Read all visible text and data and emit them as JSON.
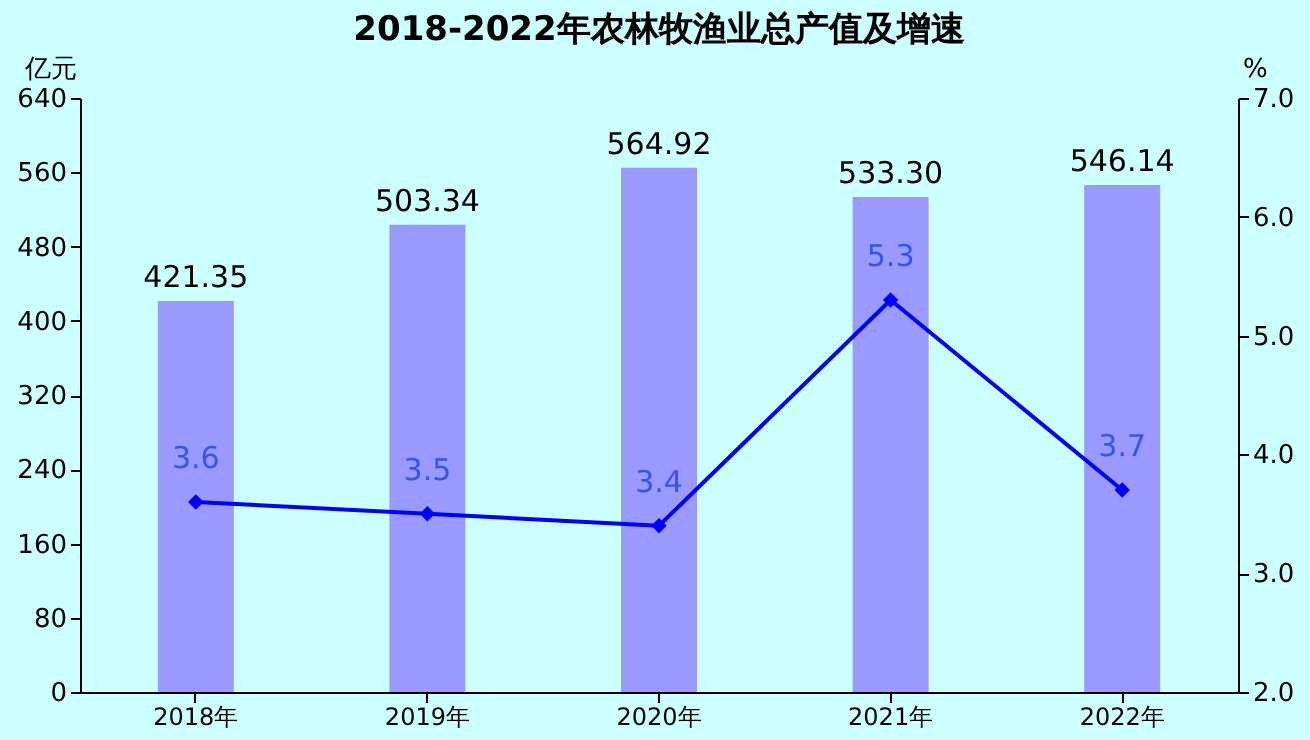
{
  "chart_data": {
    "type": "bar",
    "title": "2018-2022年农林牧渔业总产值及增速",
    "categories": [
      "2018年",
      "2019年",
      "2020年",
      "2021年",
      "2022年"
    ],
    "ylabel": "亿元",
    "y2label": "%",
    "ylim": [
      0,
      640
    ],
    "yticks": [
      0,
      80,
      160,
      240,
      320,
      400,
      480,
      560,
      640
    ],
    "y2lim": [
      2,
      7
    ],
    "y2ticks": [
      {
        "value": 2,
        "label": "2.0"
      },
      {
        "value": 3,
        "label": "3.0"
      },
      {
        "value": 4,
        "label": "4.0"
      },
      {
        "value": 5,
        "label": "5.0"
      },
      {
        "value": 6,
        "label": "6.0"
      },
      {
        "value": 7,
        "label": "7.0"
      }
    ],
    "grid": false,
    "marker": "diamond",
    "line_style": "solid",
    "series": [
      {
        "color": "#9999ff",
        "values": [
          421.35,
          503.34,
          564.92,
          533.3,
          546.14
        ],
        "value_labels": [
          "421.35",
          "503.34",
          "564.92",
          "533.30",
          "546.14"
        ]
      },
      {
        "type": "line",
        "axis": "y2",
        "color": "#0000ff",
        "values": [
          3.6,
          3.5,
          3.4,
          5.3,
          3.7
        ],
        "value_labels": [
          "3.6",
          "3.5",
          "3.4",
          "5.3",
          "3.7"
        ]
      }
    ]
  }
}
